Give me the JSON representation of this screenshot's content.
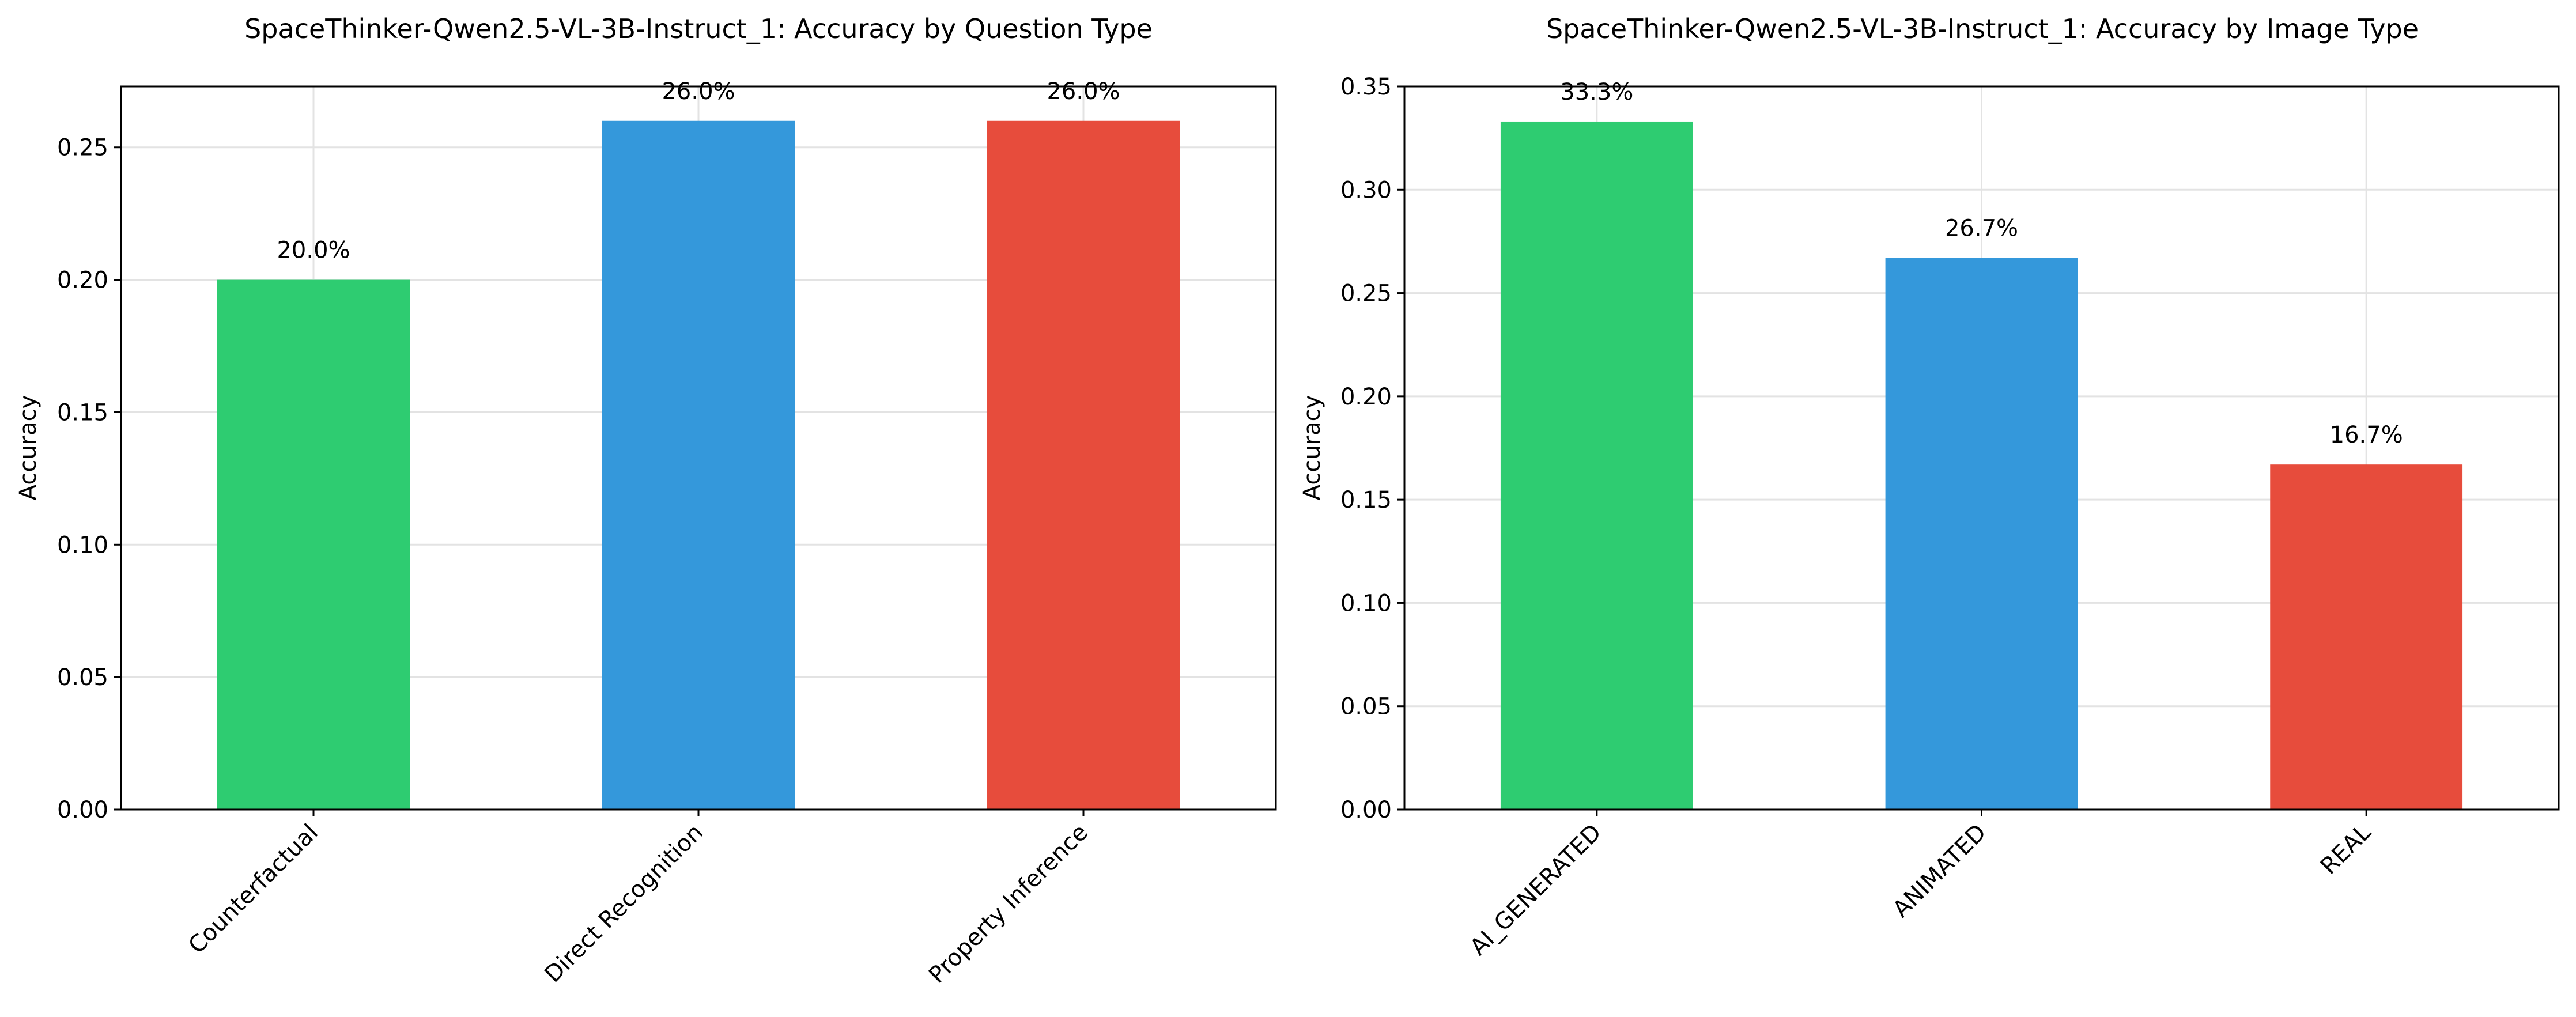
{
  "chart_data": [
    {
      "type": "bar",
      "title": "SpaceThinker-Qwen2.5-VL-3B-Instruct_1: Accuracy by Question Type",
      "xlabel": "",
      "ylabel": "Accuracy",
      "categories": [
        "Counterfactual",
        "Direct Recognition",
        "Property Inference"
      ],
      "values": [
        0.2,
        0.26,
        0.26
      ],
      "data_labels": [
        "20.0%",
        "26.0%",
        "26.0%"
      ],
      "colors": [
        "#2ecc71",
        "#3498db",
        "#e74c3c"
      ],
      "ylim": [
        0,
        0.273
      ],
      "yticks": [
        0.0,
        0.05,
        0.1,
        0.15,
        0.2,
        0.25
      ],
      "ytick_labels": [
        "0.00",
        "0.05",
        "0.10",
        "0.15",
        "0.20",
        "0.25"
      ],
      "grid": true,
      "legend": "none"
    },
    {
      "type": "bar",
      "title": "SpaceThinker-Qwen2.5-VL-3B-Instruct_1: Accuracy by Image Type",
      "xlabel": "",
      "ylabel": "Accuracy",
      "categories": [
        "AI_GENERATED",
        "ANIMATED",
        "REAL"
      ],
      "values": [
        0.333,
        0.267,
        0.167
      ],
      "data_labels": [
        "33.3%",
        "26.7%",
        "16.7%"
      ],
      "colors": [
        "#2ecc71",
        "#3498db",
        "#e74c3c"
      ],
      "ylim": [
        0,
        0.35
      ],
      "yticks": [
        0.0,
        0.05,
        0.1,
        0.15,
        0.2,
        0.25,
        0.3,
        0.35
      ],
      "ytick_labels": [
        "0.00",
        "0.05",
        "0.10",
        "0.15",
        "0.20",
        "0.25",
        "0.30",
        "0.35"
      ],
      "grid": true,
      "legend": "none"
    }
  ]
}
